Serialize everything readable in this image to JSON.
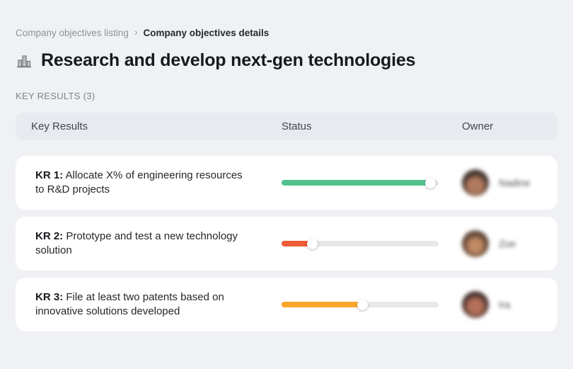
{
  "breadcrumb": {
    "separator": "›",
    "items": [
      {
        "label": "Company objectives listing"
      },
      {
        "label": "Company objectives details"
      }
    ]
  },
  "page": {
    "icon": "buildings-icon",
    "title": "Research and develop next-gen technologies"
  },
  "section": {
    "label": "KEY RESULTS (3)"
  },
  "table": {
    "headers": {
      "key_results": "Key Results",
      "status": "Status",
      "owner": "Owner"
    },
    "rows": [
      {
        "kr_label": "KR 1:",
        "kr_text": "Allocate X% of engineering resources to R&D projects",
        "progress_percent": 95,
        "progress_color": "#52c08c",
        "owner_name": "Nadine"
      },
      {
        "kr_label": "KR 2:",
        "kr_text": "Prototype and test a new technology solution",
        "progress_percent": 20,
        "progress_color": "#ee5b35",
        "owner_name": "Zoe"
      },
      {
        "kr_label": "KR 3:",
        "kr_text": "File at least two patents based on innovative solutions developed",
        "progress_percent": 52,
        "progress_color": "#f8a62c",
        "owner_name": "Ira"
      }
    ]
  },
  "colors": {
    "page_background": "#f0f1f4",
    "header_background": "#e8eaf0",
    "card_background": "#ffffff",
    "track": "#e7e8e9",
    "status_green": "#52c08c",
    "status_red": "#ee5b35",
    "status_amber": "#f8a62c"
  }
}
